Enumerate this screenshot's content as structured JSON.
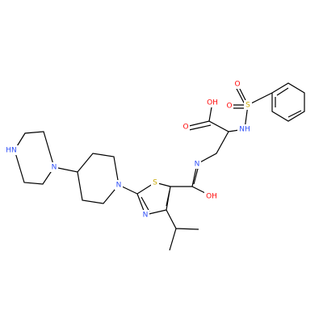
{
  "atoms": [
    {
      "label": "HN"
    },
    {
      "label": "N"
    },
    {
      "label": "N"
    },
    {
      "label": "S"
    },
    {
      "label": "N"
    },
    {
      "label": "N"
    },
    {
      "label": "OH"
    },
    {
      "label": "O"
    },
    {
      "label": "OH"
    },
    {
      "label": "NH"
    },
    {
      "label": "S"
    },
    {
      "label": "O"
    },
    {
      "label": "O"
    }
  ]
}
